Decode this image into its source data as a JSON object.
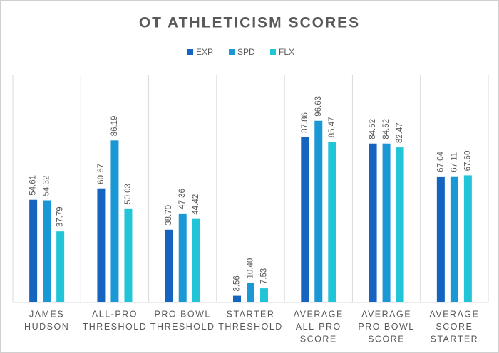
{
  "chart_data": {
    "type": "bar",
    "title": "OT ATHLETICISM SCORES",
    "categories": [
      [
        "JAMES",
        "HUDSON"
      ],
      [
        "ALL-PRO",
        "THRESHOLD"
      ],
      [
        "PRO BOWL",
        "THRESHOLD"
      ],
      [
        "STARTER",
        "THRESHOLD"
      ],
      [
        "AVERAGE",
        "ALL-PRO",
        "SCORE"
      ],
      [
        "AVERAGE",
        "PRO BOWL",
        "SCORE"
      ],
      [
        "AVERAGE",
        "SCORE",
        "STARTER"
      ]
    ],
    "series": [
      {
        "name": "EXP",
        "color": "#1565c0",
        "values": [
          54.61,
          60.67,
          38.7,
          3.56,
          87.86,
          84.52,
          67.04
        ],
        "value_labels": [
          "54.61",
          "60.67",
          "38.70",
          "3.56",
          "87.86",
          "84.52",
          "67.04"
        ]
      },
      {
        "name": "SPD",
        "color": "#1a98d5",
        "values": [
          54.32,
          86.19,
          47.36,
          10.4,
          96.63,
          84.52,
          67.11
        ],
        "value_labels": [
          "54.32",
          "86.19",
          "47.36",
          "10.40",
          "96.63",
          "84.52",
          "67.11"
        ]
      },
      {
        "name": "FLX",
        "color": "#22c4d8",
        "values": [
          37.79,
          50.03,
          44.42,
          7.53,
          85.47,
          82.47,
          67.6
        ],
        "value_labels": [
          "37.79",
          "50.03",
          "44.42",
          "7.53",
          "85.47",
          "82.47",
          "67.60"
        ]
      }
    ],
    "ylim": [
      0,
      120
    ],
    "legend": "top"
  }
}
